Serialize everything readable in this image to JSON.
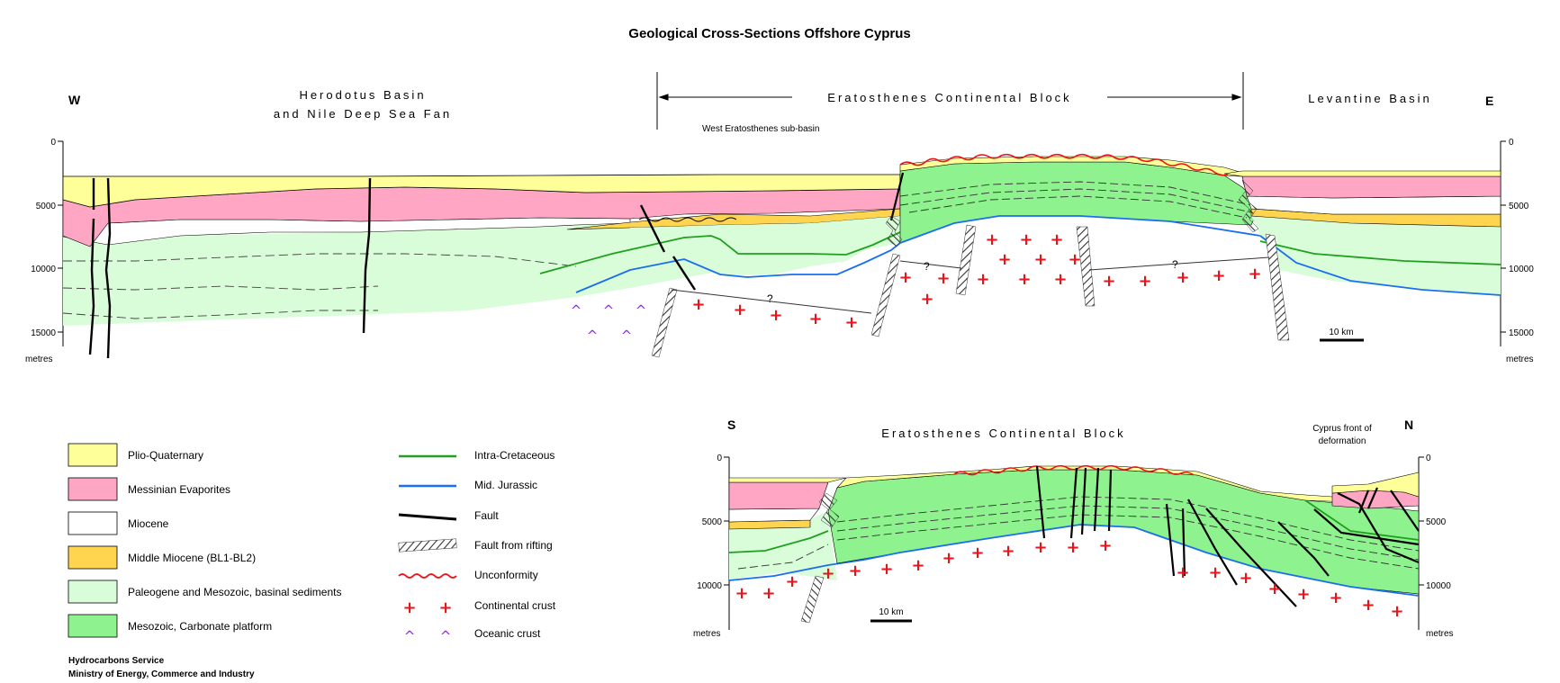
{
  "title": "Geological Cross-Sections Offshore Cyprus",
  "section1": {
    "west": "W",
    "east": "E",
    "herodotus_line1": "Herodotus Basin",
    "herodotus_line2": "and Nile Deep Sea Fan",
    "eratosthenes": "Eratosthenes Continental Block",
    "levantine": "Levantine Basin",
    "sub_basin": "West Eratosthenes sub-basin",
    "depth_ticks": [
      "0",
      "5000",
      "10000",
      "15000"
    ],
    "unit": "metres",
    "scale": "10 km",
    "uncertain": "?"
  },
  "section2": {
    "south": "S",
    "north": "N",
    "eratosthenes": "Eratosthenes Continental Block",
    "cyprus_front_line1": "Cyprus front of",
    "cyprus_front_line2": "deformation",
    "depth_ticks": [
      "0",
      "5000",
      "10000"
    ],
    "unit": "metres",
    "scale": "10 km"
  },
  "legend_units": [
    {
      "label": "Plio-Quaternary",
      "color": "#ffff99"
    },
    {
      "label": "Messinian Evaporites",
      "color": "#ffa6c4"
    },
    {
      "label": "Miocene",
      "color": "#ffffff"
    },
    {
      "label": "Middle Miocene (BL1-BL2)",
      "color": "#ffd54f"
    },
    {
      "label": "Paleogene and Mesozoic, basinal sediments",
      "color": "#d9fcd9"
    },
    {
      "label": "Mesozoic, Carbonate platform",
      "color": "#8ef28e"
    }
  ],
  "legend_lines": [
    {
      "label": "Intra-Cretaceous",
      "color": "#1fa01f"
    },
    {
      "label": "Mid. Jurassic",
      "color": "#1a6ef0"
    },
    {
      "label": "Fault",
      "color": "#000000"
    },
    {
      "label": "Fault from rifting",
      "color": "#555555"
    },
    {
      "label": "Unconformity",
      "color": "#e8141c"
    },
    {
      "label": "Continental crust",
      "color": "#e8141c"
    },
    {
      "label": "Oceanic crust",
      "color": "#8a2be2"
    }
  ],
  "credit_line1": "Hydrocarbons Service",
  "credit_line2": "Ministry of Energy, Commerce and Industry",
  "colors": {
    "plio": "#ffff99",
    "messinian": "#ffa6c4",
    "middle_miocene": "#ffd54f",
    "paleogene": "#d9fcd9",
    "carbonate": "#8ef28e",
    "intra_cretaceous": "#1fa01f",
    "mid_jurassic": "#1a6ef0",
    "unconformity": "#e8141c",
    "continental_crust": "#e8141c",
    "oceanic_crust": "#8a2be2"
  }
}
